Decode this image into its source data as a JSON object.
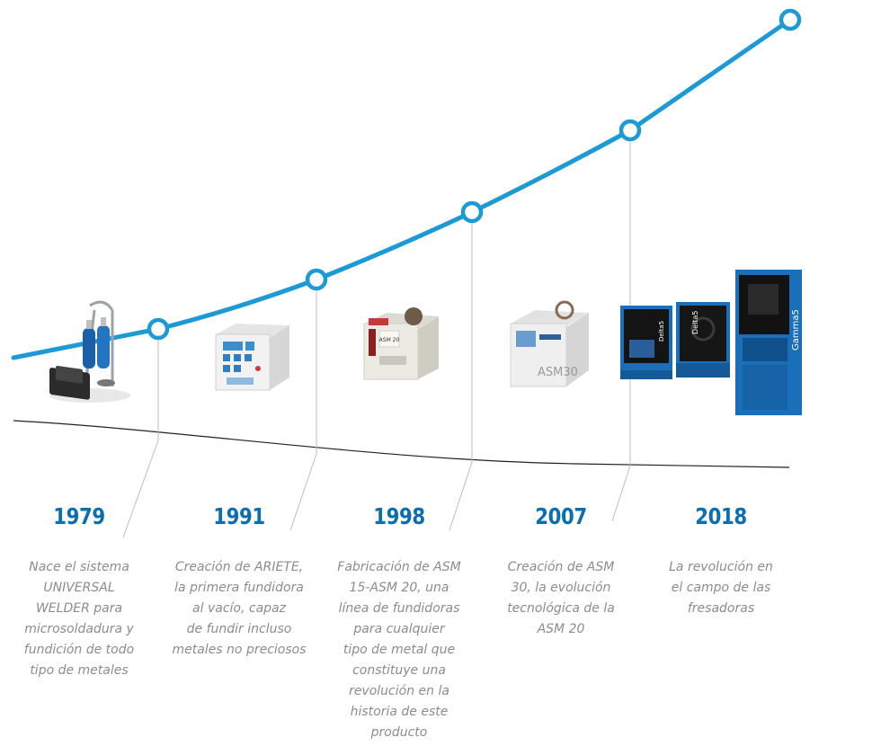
{
  "colors": {
    "line": "#1c9ad6",
    "year_text": "#0a6fb0",
    "description_text": "#8c8c8c",
    "connector": "#bdbdbd",
    "baseline": "#222222",
    "machine_blue": "#1a6fb8"
  },
  "milestones": [
    {
      "year": "1979",
      "description_lines": [
        "Nace el sistema",
        "UNIVERSAL",
        "WELDER para",
        "microsoldadura y",
        "fundición de todo",
        "tipo de metales"
      ],
      "product_icon": "universal-welder-image"
    },
    {
      "year": "1991",
      "description_lines": [
        "Creación de ARIETE,",
        "la primera fundidora",
        "al vacío, capaz",
        "de fundir incluso",
        "metales no preciosos"
      ],
      "product_icon": "ariete-machine-image"
    },
    {
      "year": "1998",
      "description_lines": [
        "Fabricación de ASM",
        "15-ASM 20, una",
        "línea de fundidoras",
        "para cualquier",
        "tipo de metal que",
        "constituye una",
        "revolución en la",
        "historia de este",
        "producto"
      ],
      "product_icon": "asm20-machine-image",
      "product_label": "ASM 20"
    },
    {
      "year": "2007",
      "description_lines": [
        "Creación de ASM",
        "30, la evolución",
        "tecnológica de la",
        "ASM 20"
      ],
      "product_icon": "asm30-machine-image",
      "product_label": "ASM30"
    },
    {
      "year": "2018",
      "description_lines": [
        "La revolución en",
        "el campo de las",
        "fresadoras"
      ],
      "product_icon": "milling-machines-image",
      "product_labels": [
        "Delta5",
        "Delta5",
        "Gamma5"
      ]
    }
  ]
}
